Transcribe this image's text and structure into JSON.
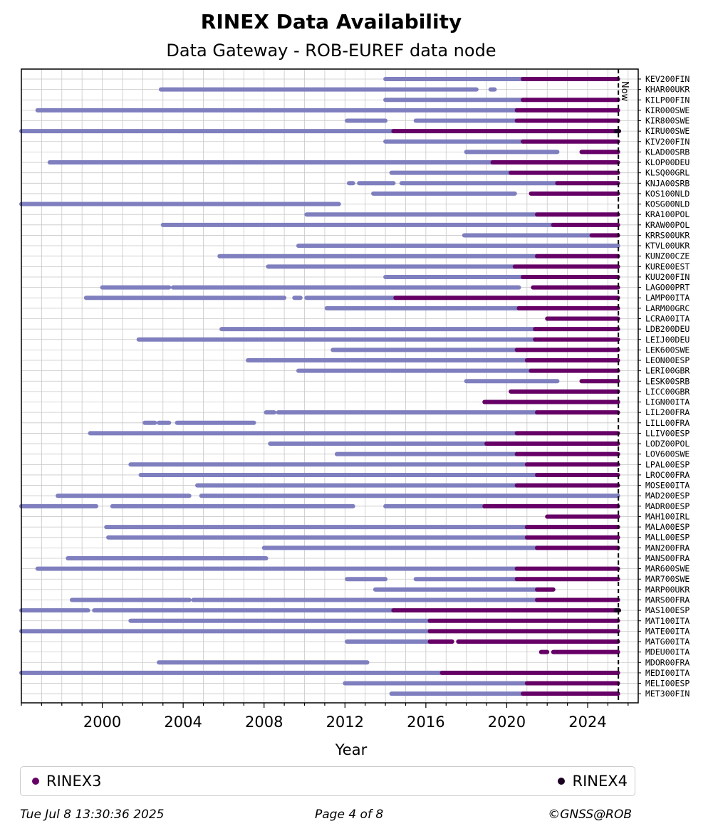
{
  "chart_data": {
    "type": "timeline",
    "title": "RINEX Data Availability",
    "subtitle": "Data Gateway - ROB-EUREF data node",
    "xlabel": "Year",
    "xlim": [
      1996.0,
      2026.5
    ],
    "xticks": [
      2000,
      2004,
      2008,
      2012,
      2016,
      2020,
      2024
    ],
    "now_label": "Now",
    "now_year": 2025.52,
    "colors": {
      "RINEX2": "#7f7fbf",
      "RINEX3": "#660066",
      "RINEX4": "#1a0022"
    },
    "stations": [
      {
        "name": "KEV200FIN",
        "rinex2": [
          [
            2014.0,
            2020.8
          ]
        ],
        "rinex3": [
          [
            2020.8,
            2025.5
          ]
        ]
      },
      {
        "name": "KHAR00UKR",
        "rinex2": [
          [
            2002.9,
            2018.5
          ],
          [
            2019.2,
            2019.4
          ]
        ],
        "rinex3": []
      },
      {
        "name": "KILP00FIN",
        "rinex2": [
          [
            2014.0,
            2020.8
          ]
        ],
        "rinex3": [
          [
            2020.8,
            2025.5
          ]
        ]
      },
      {
        "name": "KIR000SWE",
        "rinex2": [
          [
            1996.8,
            2020.5
          ]
        ],
        "rinex3": [
          [
            2020.5,
            2025.5
          ]
        ]
      },
      {
        "name": "KIR800SWE",
        "rinex2": [
          [
            2012.1,
            2014.0
          ],
          [
            2015.5,
            2020.5
          ]
        ],
        "rinex3": [
          [
            2020.5,
            2025.5
          ]
        ]
      },
      {
        "name": "KIRU00SWE",
        "rinex2": [
          [
            1996.0,
            2014.4
          ]
        ],
        "rinex3": [
          [
            2014.4,
            2025.4
          ]
        ],
        "rinex4": [
          [
            2025.4,
            2025.55
          ]
        ]
      },
      {
        "name": "KIV200FIN",
        "rinex2": [
          [
            2014.0,
            2020.8
          ]
        ],
        "rinex3": [
          [
            2020.8,
            2025.5
          ]
        ]
      },
      {
        "name": "KLAD00SRB",
        "rinex2": [
          [
            2018.0,
            2022.5
          ]
        ],
        "rinex3": [
          [
            2023.7,
            2025.5
          ]
        ]
      },
      {
        "name": "KLOP00DEU",
        "rinex2": [
          [
            1997.4,
            2019.3
          ]
        ],
        "rinex3": [
          [
            2019.3,
            2025.5
          ]
        ]
      },
      {
        "name": "KLSQ00GRL",
        "rinex2": [
          [
            2014.3,
            2020.2
          ]
        ],
        "rinex3": [
          [
            2020.2,
            2025.5
          ]
        ]
      },
      {
        "name": "KNJA00SRB",
        "rinex2": [
          [
            2012.2,
            2012.4
          ],
          [
            2012.7,
            2014.4
          ],
          [
            2014.8,
            2022.5
          ]
        ],
        "rinex3": [
          [
            2022.5,
            2025.5
          ]
        ]
      },
      {
        "name": "KOS100NLD",
        "rinex2": [
          [
            2013.4,
            2020.4
          ]
        ],
        "rinex3": [
          [
            2021.2,
            2025.5
          ]
        ]
      },
      {
        "name": "KOSG00NLD",
        "rinex2": [
          [
            1996.0,
            2011.7
          ]
        ],
        "rinex3": []
      },
      {
        "name": "KRA100POL",
        "rinex2": [
          [
            2010.1,
            2021.5
          ]
        ],
        "rinex3": [
          [
            2021.5,
            2025.5
          ]
        ]
      },
      {
        "name": "KRAW00POL",
        "rinex2": [
          [
            2003.0,
            2022.3
          ]
        ],
        "rinex3": [
          [
            2022.3,
            2025.5
          ]
        ]
      },
      {
        "name": "KRRS00UKR",
        "rinex2": [
          [
            2017.9,
            2024.2
          ]
        ],
        "rinex3": [
          [
            2024.2,
            2025.5
          ]
        ]
      },
      {
        "name": "KTVL00UKR",
        "rinex2": [
          [
            2009.7,
            2025.5
          ]
        ],
        "rinex3": []
      },
      {
        "name": "KUNZ00CZE",
        "rinex2": [
          [
            2005.8,
            2021.5
          ]
        ],
        "rinex3": [
          [
            2021.5,
            2025.5
          ]
        ]
      },
      {
        "name": "KURE00EST",
        "rinex2": [
          [
            2008.2,
            2020.4
          ]
        ],
        "rinex3": [
          [
            2020.4,
            2025.5
          ]
        ]
      },
      {
        "name": "KUU200FIN",
        "rinex2": [
          [
            2014.0,
            2020.8
          ]
        ],
        "rinex3": [
          [
            2020.8,
            2025.5
          ]
        ]
      },
      {
        "name": "LAGO00PRT",
        "rinex2": [
          [
            2000.0,
            2003.3
          ],
          [
            2003.5,
            2020.6
          ]
        ],
        "rinex3": [
          [
            2021.3,
            2025.5
          ]
        ]
      },
      {
        "name": "LAMP00ITA",
        "rinex2": [
          [
            1999.2,
            2009.0
          ],
          [
            2009.5,
            2009.8
          ],
          [
            2010.1,
            2014.5
          ]
        ],
        "rinex3": [
          [
            2014.5,
            2025.5
          ]
        ]
      },
      {
        "name": "LARM00GRC",
        "rinex2": [
          [
            2011.1,
            2020.6
          ]
        ],
        "rinex3": [
          [
            2020.6,
            2025.5
          ]
        ]
      },
      {
        "name": "LCRA00ITA",
        "rinex2": [],
        "rinex3": [
          [
            2022.0,
            2025.5
          ]
        ]
      },
      {
        "name": "LDB200DEU",
        "rinex2": [
          [
            2005.9,
            2021.4
          ]
        ],
        "rinex3": [
          [
            2021.4,
            2025.5
          ]
        ]
      },
      {
        "name": "LEIJ00DEU",
        "rinex2": [
          [
            2001.8,
            2021.4
          ]
        ],
        "rinex3": [
          [
            2021.4,
            2025.5
          ]
        ]
      },
      {
        "name": "LEK600SWE",
        "rinex2": [
          [
            2011.4,
            2020.5
          ]
        ],
        "rinex3": [
          [
            2020.5,
            2025.5
          ]
        ]
      },
      {
        "name": "LEON00ESP",
        "rinex2": [
          [
            2007.2,
            2021.0
          ]
        ],
        "rinex3": [
          [
            2021.0,
            2025.5
          ]
        ]
      },
      {
        "name": "LERI00GBR",
        "rinex2": [
          [
            2009.7,
            2021.2
          ]
        ],
        "rinex3": [
          [
            2021.2,
            2025.5
          ]
        ]
      },
      {
        "name": "LESK00SRB",
        "rinex2": [
          [
            2018.0,
            2022.5
          ]
        ],
        "rinex3": [
          [
            2023.7,
            2025.5
          ]
        ]
      },
      {
        "name": "LICC00GBR",
        "rinex2": [],
        "rinex3": [
          [
            2020.2,
            2025.5
          ]
        ]
      },
      {
        "name": "LIGN00ITA",
        "rinex2": [],
        "rinex3": [
          [
            2018.9,
            2025.5
          ]
        ]
      },
      {
        "name": "LIL200FRA",
        "rinex2": [
          [
            2008.1,
            2008.5
          ],
          [
            2008.7,
            2021.5
          ]
        ],
        "rinex3": [
          [
            2021.5,
            2025.5
          ]
        ]
      },
      {
        "name": "LILL00FRA",
        "rinex2": [
          [
            2002.1,
            2002.6
          ],
          [
            2002.8,
            2003.3
          ],
          [
            2003.7,
            2007.5
          ]
        ],
        "rinex3": []
      },
      {
        "name": "LLIV00ESP",
        "rinex2": [
          [
            1999.4,
            2020.5
          ]
        ],
        "rinex3": [
          [
            2020.5,
            2025.5
          ]
        ]
      },
      {
        "name": "LODZ00POL",
        "rinex2": [
          [
            2008.3,
            2019.0
          ]
        ],
        "rinex3": [
          [
            2019.0,
            2025.5
          ]
        ]
      },
      {
        "name": "LOV600SWE",
        "rinex2": [
          [
            2011.6,
            2020.5
          ]
        ],
        "rinex3": [
          [
            2020.5,
            2025.5
          ]
        ]
      },
      {
        "name": "LPAL00ESP",
        "rinex2": [
          [
            2001.4,
            2021.0
          ]
        ],
        "rinex3": [
          [
            2021.0,
            2025.5
          ]
        ]
      },
      {
        "name": "LROC00FRA",
        "rinex2": [
          [
            2001.9,
            2021.5
          ]
        ],
        "rinex3": [
          [
            2021.5,
            2025.5
          ]
        ]
      },
      {
        "name": "MOSE00ITA",
        "rinex2": [
          [
            2004.7,
            2020.5
          ]
        ],
        "rinex3": [
          [
            2020.5,
            2025.5
          ]
        ]
      },
      {
        "name": "MAD200ESP",
        "rinex2": [
          [
            1997.8,
            2004.3
          ],
          [
            2004.9,
            2025.5
          ]
        ],
        "rinex3": []
      },
      {
        "name": "MADR00ESP",
        "rinex2": [
          [
            1996.0,
            1999.7
          ],
          [
            2000.5,
            2012.4
          ],
          [
            2014.0,
            2018.9
          ]
        ],
        "rinex3": [
          [
            2018.9,
            2025.5
          ]
        ]
      },
      {
        "name": "MAH100IRL",
        "rinex2": [],
        "rinex3": [
          [
            2022.0,
            2025.5
          ]
        ]
      },
      {
        "name": "MALA00ESP",
        "rinex2": [
          [
            2000.2,
            2021.0
          ]
        ],
        "rinex3": [
          [
            2021.0,
            2025.5
          ]
        ]
      },
      {
        "name": "MALL00ESP",
        "rinex2": [
          [
            2000.3,
            2021.0
          ]
        ],
        "rinex3": [
          [
            2021.0,
            2025.5
          ]
        ]
      },
      {
        "name": "MAN200FRA",
        "rinex2": [
          [
            2008.0,
            2021.5
          ]
        ],
        "rinex3": [
          [
            2021.5,
            2025.5
          ]
        ]
      },
      {
        "name": "MANS00FRA",
        "rinex2": [
          [
            1998.3,
            2008.1
          ]
        ],
        "rinex3": []
      },
      {
        "name": "MAR600SWE",
        "rinex2": [
          [
            1996.8,
            2020.5
          ]
        ],
        "rinex3": [
          [
            2020.5,
            2025.5
          ]
        ]
      },
      {
        "name": "MAR700SWE",
        "rinex2": [
          [
            2012.1,
            2014.0
          ],
          [
            2015.5,
            2020.5
          ]
        ],
        "rinex3": [
          [
            2020.5,
            2025.5
          ]
        ]
      },
      {
        "name": "MARP00UKR",
        "rinex2": [
          [
            2013.5,
            2021.5
          ]
        ],
        "rinex3": [
          [
            2021.5,
            2022.3
          ]
        ]
      },
      {
        "name": "MARS00FRA",
        "rinex2": [
          [
            1998.5,
            2004.3
          ],
          [
            2004.5,
            2021.5
          ]
        ],
        "rinex3": [
          [
            2021.5,
            2025.5
          ]
        ]
      },
      {
        "name": "MAS100ESP",
        "rinex2": [
          [
            1996.0,
            1999.3
          ],
          [
            1999.6,
            2014.4
          ]
        ],
        "rinex3": [
          [
            2014.4,
            2025.4
          ]
        ],
        "rinex4": [
          [
            2025.4,
            2025.55
          ]
        ]
      },
      {
        "name": "MAT100ITA",
        "rinex2": [
          [
            2001.4,
            2016.2
          ]
        ],
        "rinex3": [
          [
            2016.2,
            2025.5
          ]
        ]
      },
      {
        "name": "MATE00ITA",
        "rinex2": [
          [
            1996.0,
            2016.2
          ]
        ],
        "rinex3": [
          [
            2016.2,
            2025.5
          ]
        ]
      },
      {
        "name": "MATG00ITA",
        "rinex2": [
          [
            2012.1,
            2016.2
          ]
        ],
        "rinex3": [
          [
            2016.2,
            2017.3
          ],
          [
            2017.6,
            2025.5
          ]
        ]
      },
      {
        "name": "MDEU00ITA",
        "rinex2": [],
        "rinex3": [
          [
            2021.7,
            2022.0
          ],
          [
            2022.3,
            2025.5
          ]
        ]
      },
      {
        "name": "MDOR00FRA",
        "rinex2": [
          [
            2002.8,
            2013.1
          ]
        ],
        "rinex3": []
      },
      {
        "name": "MEDI00ITA",
        "rinex2": [
          [
            1996.0,
            2016.8
          ]
        ],
        "rinex3": [
          [
            2016.8,
            2025.5
          ]
        ]
      },
      {
        "name": "MELI00ESP",
        "rinex2": [
          [
            2012.0,
            2021.0
          ]
        ],
        "rinex3": [
          [
            2021.0,
            2025.5
          ]
        ]
      },
      {
        "name": "MET300FIN",
        "rinex2": [
          [
            2014.3,
            2020.8
          ]
        ],
        "rinex3": [
          [
            2020.8,
            2025.5
          ]
        ]
      }
    ],
    "legend": [
      "RINEX3",
      "RINEX4"
    ]
  },
  "footer": {
    "timestamp": "Tue Jul  8 13:30:36 2025",
    "page": "Page 4 of 8",
    "copyright": "©GNSS@ROB"
  }
}
